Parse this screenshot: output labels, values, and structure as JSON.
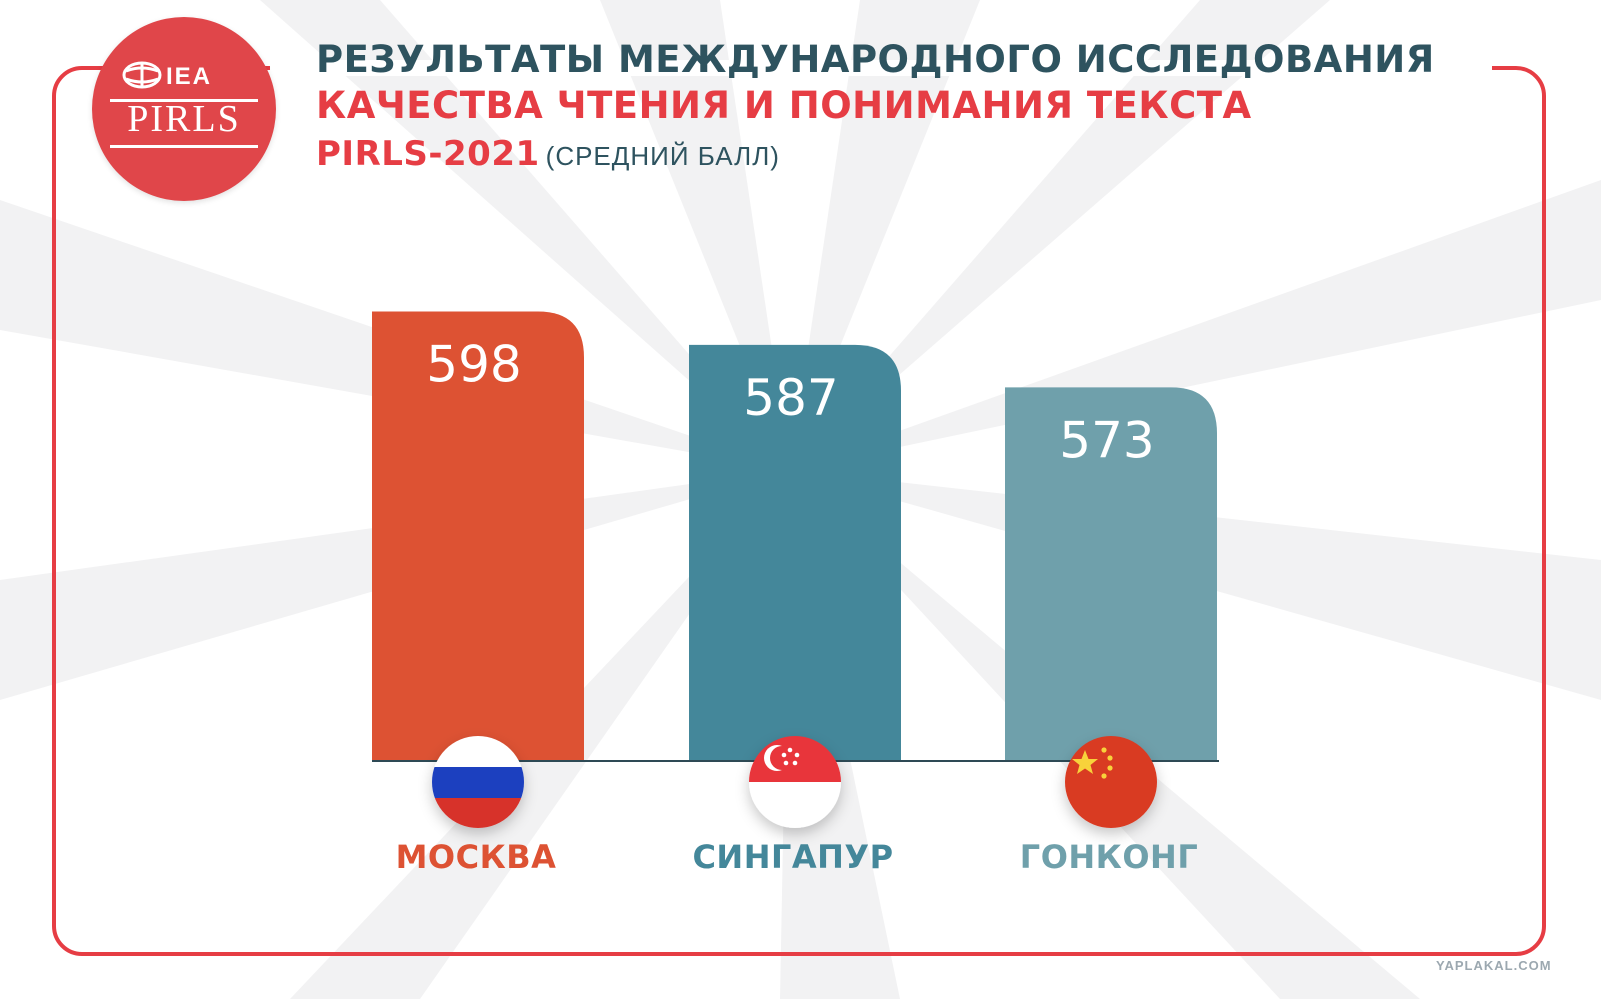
{
  "logo": {
    "top_text": "IEA",
    "bottom_text": "PIRLS"
  },
  "header": {
    "line1": "РЕЗУЛЬТАТЫ МЕЖДУНАРОДНОГО ИССЛЕДОВАНИЯ",
    "line2": "КАЧЕСТВА ЧТЕНИЯ И ПОНИМАНИЯ ТЕКСТА",
    "line3": "PIRLS-2021",
    "line3_sub": "(СРЕДНИЙ БАЛЛ)"
  },
  "chart_data": {
    "type": "bar",
    "categories": [
      "МОСКВА",
      "СИНГАПУР",
      "ГОНКОНГ"
    ],
    "values": [
      598,
      587,
      573
    ],
    "colors": [
      "#dd5233",
      "#44879a",
      "#6fa0ab"
    ],
    "flags": [
      "russia-flag-icon",
      "singapore-flag-icon",
      "china-flag-icon"
    ],
    "ylim": [
      450,
      610
    ]
  },
  "watermark": "YAPLAKAL.COM",
  "colors": {
    "accent_red": "#e63d44",
    "dark_teal": "#2e535f"
  }
}
